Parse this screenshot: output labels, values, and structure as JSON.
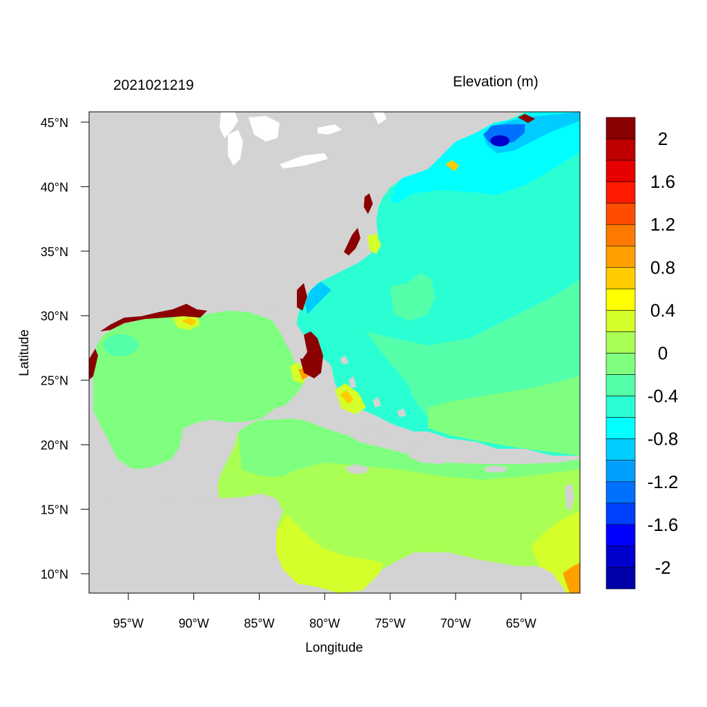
{
  "header": {
    "timestamp": "2021021219",
    "variable": "Elevation (m)"
  },
  "map": {
    "region": "US East Coast, Gulf of Mexico and Caribbean",
    "lon_range": [
      -98,
      -60.5
    ],
    "lat_range": [
      8.5,
      45.8
    ],
    "land_color": "#d3d3d3",
    "xlabel": "Longitude",
    "ylabel": "Latitude",
    "lon_ticks": [
      {
        "value": -95,
        "label": "95°W"
      },
      {
        "value": -90,
        "label": "90°W"
      },
      {
        "value": -85,
        "label": "85°W"
      },
      {
        "value": -80,
        "label": "80°W"
      },
      {
        "value": -75,
        "label": "75°W"
      },
      {
        "value": -70,
        "label": "70°W"
      },
      {
        "value": -65,
        "label": "65°W"
      }
    ],
    "lat_ticks": [
      {
        "value": 45,
        "label": "45°N"
      },
      {
        "value": 40,
        "label": "40°N"
      },
      {
        "value": 35,
        "label": "35°N"
      },
      {
        "value": 30,
        "label": "30°N"
      },
      {
        "value": 25,
        "label": "25°N"
      },
      {
        "value": 20,
        "label": "20°N"
      },
      {
        "value": 15,
        "label": "15°N"
      },
      {
        "value": 10,
        "label": "10°N"
      }
    ]
  },
  "colorbar": {
    "colors_top_to_bottom": [
      "#8b0000",
      "#c00000",
      "#e60000",
      "#ff1a00",
      "#ff4d00",
      "#ff7a00",
      "#ffa000",
      "#ffcc00",
      "#ffff00",
      "#d4ff2a",
      "#aaff55",
      "#7fff7f",
      "#55ffaa",
      "#2affd4",
      "#00ffff",
      "#00ccff",
      "#00a0ff",
      "#0070ff",
      "#0040ff",
      "#0000ff",
      "#0000cc",
      "#0000aa"
    ],
    "labels": [
      "2",
      "1.6",
      "1.2",
      "0.8",
      "0.4",
      "0",
      "-0.4",
      "-0.8",
      "-1.2",
      "-1.6",
      "-2"
    ]
  }
}
